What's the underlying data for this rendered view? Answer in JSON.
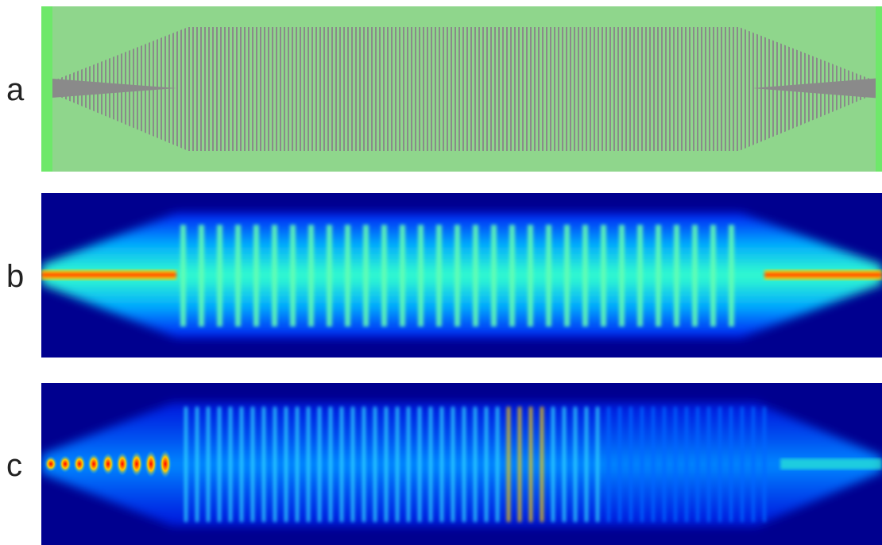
{
  "panels": [
    {
      "label": "a",
      "kind": "device-layout",
      "colors": {
        "cladding": "#8fd68c",
        "edge": "#6ee86a",
        "grating": "#8a8a8a"
      }
    },
    {
      "label": "b",
      "kind": "field-map",
      "background": "#00008f",
      "colormap": "jet"
    },
    {
      "label": "c",
      "kind": "field-map",
      "background": "#00008f",
      "colormap": "jet"
    }
  ]
}
